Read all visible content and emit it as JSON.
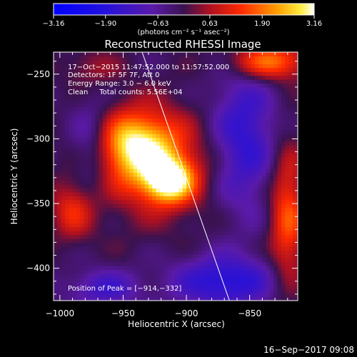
{
  "chart_data": {
    "type": "heatmap",
    "title": "Reconstructed RHESSI Image",
    "xlabel": "Heliocentric X (arcsec)",
    "ylabel": "Heliocentric Y (arcsec)",
    "xlim": [
      -1005,
      -812
    ],
    "ylim": [
      -425,
      -233
    ],
    "xticks": [
      -1000,
      -950,
      -900,
      -850
    ],
    "xtick_labels": [
      "−1000",
      "−950",
      "−900",
      "−850"
    ],
    "yticks": [
      -250,
      -300,
      -350,
      -400
    ],
    "ytick_labels": [
      "−250",
      "−300",
      "−350",
      "−400"
    ],
    "colorbar": {
      "range": [
        -3.16,
        3.16
      ],
      "ticks": [
        -3.16,
        -1.9,
        -0.63,
        0.63,
        1.9,
        3.16
      ],
      "tick_labels": [
        "−3.16",
        "−1.90",
        "−0.63",
        "0.63",
        "1.90",
        "3.16"
      ],
      "unit_label": "(photons cm⁻² s⁻¹ asec⁻²)"
    },
    "annotations": {
      "time_range": "17−Oct−2015 11:47:52.000 to 11:57:52.000",
      "detectors": "Detectors: 1F 5F 7F, Att 0",
      "energy": "Energy Range: 3.0 − 6.0 keV",
      "clean": "Clean     Total counts: 5.56E+04",
      "peak": "Position of Peak = [−914,−332]"
    },
    "peak": [
      -914,
      -332
    ],
    "sources": [
      {
        "x": -940,
        "y": -305,
        "amp": 2.6,
        "sx": 22,
        "sy": 18
      },
      {
        "x": -914,
        "y": -332,
        "amp": 3.1,
        "sx": 14,
        "sy": 12
      },
      {
        "x": -925,
        "y": -320,
        "amp": 1.2,
        "sx": 35,
        "sy": 30
      },
      {
        "x": -835,
        "y": -240,
        "amp": 2.2,
        "sx": 22,
        "sy": 10
      },
      {
        "x": -820,
        "y": -360,
        "amp": 1.8,
        "sx": 10,
        "sy": 38
      },
      {
        "x": -990,
        "y": -355,
        "amp": 1.3,
        "sx": 12,
        "sy": 16
      },
      {
        "x": -975,
        "y": -245,
        "amp": 0.7,
        "sx": 15,
        "sy": 10
      },
      {
        "x": -855,
        "y": -300,
        "amp": -1.6,
        "sx": 18,
        "sy": 40
      },
      {
        "x": -975,
        "y": -305,
        "amp": -1.2,
        "sx": 12,
        "sy": 25
      },
      {
        "x": -870,
        "y": -410,
        "amp": -1.8,
        "sx": 28,
        "sy": 14
      },
      {
        "x": -965,
        "y": -415,
        "amp": -1.2,
        "sx": 20,
        "sy": 10
      }
    ],
    "limb_line": [
      [
        -935,
        -233
      ],
      [
        -866,
        -425
      ]
    ]
  },
  "footer": {
    "date": "16−Sep−2017 09:08"
  }
}
